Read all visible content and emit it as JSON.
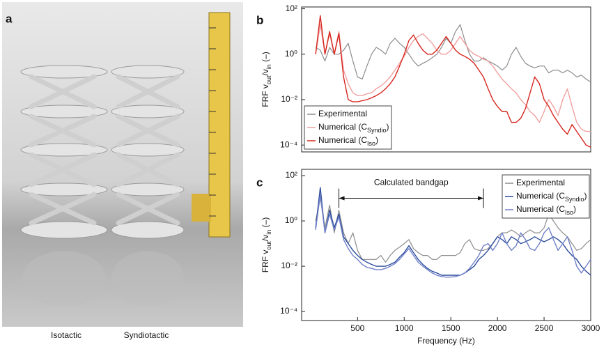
{
  "photo": {
    "label": "a",
    "captions": [
      "Isotactic",
      "Syndiotactic"
    ]
  },
  "chart_data": [
    {
      "type": "line",
      "label": "b",
      "ylabel": [
        "FRF v",
        "out",
        "/v",
        "in",
        " (–)"
      ],
      "x": [
        50,
        100,
        150,
        200,
        250,
        300,
        350,
        400,
        450,
        500,
        550,
        600,
        650,
        700,
        750,
        800,
        850,
        900,
        950,
        1000,
        1050,
        1100,
        1150,
        1200,
        1250,
        1300,
        1350,
        1400,
        1450,
        1500,
        1550,
        1600,
        1650,
        1700,
        1750,
        1800,
        1850,
        1900,
        1950,
        2000,
        2050,
        2100,
        2150,
        2200,
        2250,
        2300,
        2350,
        2400,
        2450,
        2500,
        2550,
        2600,
        2650,
        2700,
        2750,
        2800,
        2850,
        2900,
        2950,
        3000
      ],
      "xlim": [
        -100,
        3000
      ],
      "ylim": [
        5e-05,
        120
      ],
      "log_y": true,
      "yticks": [
        {
          "value": 100,
          "label": "10²"
        },
        {
          "value": 1,
          "label": "10⁰"
        },
        {
          "value": 0.01,
          "label": "10⁻²"
        },
        {
          "value": 0.0001,
          "label": "10⁻⁴"
        }
      ],
      "legend": "lower left",
      "series": [
        {
          "name": [
            "Experimental"
          ],
          "color": "#8c8c8c",
          "values": [
            2,
            1.5,
            0.5,
            2,
            1,
            1,
            1.5,
            3,
            0.5,
            0.1,
            0.08,
            0.3,
            1,
            2,
            1.5,
            1,
            3,
            5,
            3,
            2,
            1,
            0.5,
            0.3,
            0.4,
            0.5,
            0.7,
            1,
            2,
            5,
            3,
            10,
            20,
            4,
            1,
            0.5,
            0.5,
            0.7,
            0.5,
            0.4,
            0.3,
            0.2,
            0.3,
            1,
            2,
            0.8,
            0.4,
            0.3,
            0.25,
            0.3,
            0.3,
            0.15,
            0.2,
            0.2,
            0.15,
            0.2,
            0.15,
            0.1,
            0.12,
            0.08,
            0.06
          ]
        },
        {
          "name": [
            "Numerical (C",
            "Syndio",
            ")"
          ],
          "color": "#f0a0a0",
          "values": [
            1,
            20,
            1,
            8,
            1,
            10,
            0.2,
            0.05,
            0.02,
            0.015,
            0.015,
            0.018,
            0.02,
            0.03,
            0.04,
            0.06,
            0.1,
            0.2,
            0.4,
            0.8,
            2,
            4,
            6,
            8,
            5,
            3,
            1.5,
            1,
            1,
            1.5,
            3,
            6,
            3,
            1.5,
            1,
            0.8,
            0.6,
            0.5,
            0.3,
            0.15,
            0.08,
            0.05,
            0.03,
            0.02,
            0.01,
            0.006,
            0.003,
            0.002,
            0.001,
            0.003,
            0.01,
            0.005,
            0.002,
            0.01,
            0.03,
            0.005,
            0.001,
            0.0005,
            0.0004,
            0.0004
          ]
        },
        {
          "name": [
            "Numerical (C",
            "Iso",
            ")"
          ],
          "color": "#d7261e",
          "values": [
            1,
            50,
            1,
            10,
            1,
            8,
            0.1,
            0.01,
            0.008,
            0.008,
            0.009,
            0.01,
            0.012,
            0.015,
            0.02,
            0.03,
            0.05,
            0.1,
            0.3,
            1,
            4,
            7,
            3,
            1.5,
            1,
            1,
            1.5,
            3,
            6,
            3,
            1.5,
            1,
            0.8,
            0.6,
            0.4,
            0.2,
            0.1,
            0.03,
            0.01,
            0.005,
            0.003,
            0.003,
            0.001,
            0.001,
            0.0015,
            0.004,
            0.02,
            0.1,
            0.05,
            0.01,
            0.005,
            0.002,
            0.001,
            0.0005,
            0.0003,
            0.0008,
            0.0004,
            0.0002,
            0.0001,
            8e-05
          ]
        }
      ]
    },
    {
      "type": "line",
      "label": "c",
      "ylabel": [
        "FRF v",
        "out",
        "/v",
        "in",
        " (–)"
      ],
      "xlabel": "Frequency (Hz)",
      "x": [
        50,
        100,
        150,
        200,
        250,
        300,
        350,
        400,
        450,
        500,
        550,
        600,
        650,
        700,
        750,
        800,
        850,
        900,
        950,
        1000,
        1050,
        1100,
        1150,
        1200,
        1250,
        1300,
        1350,
        1400,
        1450,
        1500,
        1550,
        1600,
        1650,
        1700,
        1750,
        1800,
        1850,
        1900,
        1950,
        2000,
        2050,
        2100,
        2150,
        2200,
        2250,
        2300,
        2350,
        2400,
        2450,
        2500,
        2550,
        2600,
        2650,
        2700,
        2750,
        2800,
        2850,
        2900,
        2950,
        3000
      ],
      "xlim": [
        -100,
        3000
      ],
      "xticks": [
        500,
        1000,
        1500,
        2000,
        2500,
        3000
      ],
      "ylim": [
        4e-05,
        190
      ],
      "log_y": true,
      "yticks": [
        {
          "value": 100,
          "label": "10²"
        },
        {
          "value": 1,
          "label": "10⁰"
        },
        {
          "value": 0.01,
          "label": "10⁻²"
        },
        {
          "value": 0.0001,
          "label": "10⁻⁴"
        }
      ],
      "legend": "upper right",
      "annotations": [
        {
          "text": "Calculated bandgap",
          "x": [
            300,
            1850
          ],
          "y": 10
        }
      ],
      "series": [
        {
          "name": [
            "Experimental"
          ],
          "color": "#8c8c8c",
          "values": [
            1,
            10,
            0.5,
            5,
            0.3,
            3,
            0.3,
            0.1,
            0.3,
            0.05,
            0.02,
            0.02,
            0.02,
            0.02,
            0.03,
            0.015,
            0.03,
            0.05,
            0.07,
            0.1,
            0.15,
            0.06,
            0.04,
            0.03,
            0.03,
            0.02,
            0.02,
            0.03,
            0.03,
            0.03,
            0.03,
            0.04,
            0.1,
            0.15,
            0.06,
            0.05,
            0.05,
            0.06,
            0.1,
            0.2,
            0.3,
            0.3,
            0.4,
            0.3,
            0.2,
            0.3,
            0.4,
            0.3,
            0.3,
            0.5,
            2,
            1,
            0.5,
            0.3,
            0.2,
            0.1,
            0.05,
            0.06,
            0.1,
            0.15
          ]
        },
        {
          "name": [
            "Numerical (C",
            "Syndio",
            ")"
          ],
          "color": "#2b4c9b",
          "values": [
            0.5,
            30,
            0.3,
            3,
            0.5,
            2,
            0.2,
            0.1,
            0.05,
            0.03,
            0.02,
            0.015,
            0.012,
            0.01,
            0.01,
            0.01,
            0.012,
            0.015,
            0.025,
            0.04,
            0.08,
            0.04,
            0.02,
            0.012,
            0.008,
            0.006,
            0.005,
            0.004,
            0.004,
            0.004,
            0.004,
            0.004,
            0.005,
            0.007,
            0.01,
            0.02,
            0.03,
            0.05,
            0.1,
            0.2,
            0.15,
            0.1,
            0.2,
            0.15,
            0.1,
            0.12,
            0.15,
            0.2,
            0.15,
            0.12,
            0.15,
            0.2,
            0.15,
            0.1,
            0.05,
            0.03,
            0.02,
            0.01,
            0.006,
            0.004
          ]
        },
        {
          "name": [
            "Numerical (C",
            "Iso",
            ")"
          ],
          "color": "#7080c8",
          "values": [
            0.4,
            15,
            0.3,
            2,
            0.4,
            1.5,
            0.15,
            0.06,
            0.03,
            0.02,
            0.012,
            0.009,
            0.008,
            0.007,
            0.007,
            0.008,
            0.01,
            0.013,
            0.02,
            0.035,
            0.06,
            0.03,
            0.015,
            0.01,
            0.007,
            0.005,
            0.004,
            0.0035,
            0.0033,
            0.0033,
            0.0035,
            0.004,
            0.005,
            0.008,
            0.015,
            0.03,
            0.08,
            0.1,
            0.05,
            0.1,
            0.3,
            0.1,
            0.05,
            0.08,
            0.3,
            0.15,
            0.06,
            0.05,
            0.1,
            0.3,
            0.5,
            0.15,
            0.05,
            0.1,
            0.2,
            0.05,
            0.01,
            0.005,
            0.01,
            0.02
          ]
        }
      ]
    }
  ]
}
